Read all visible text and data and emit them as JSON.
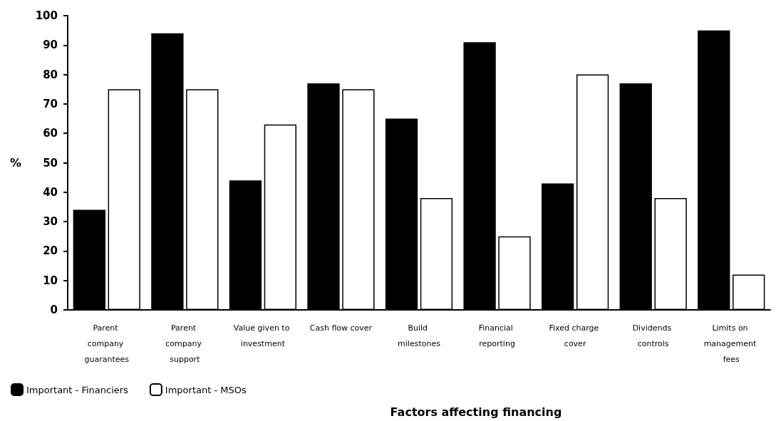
{
  "chart_data": {
    "type": "bar",
    "xlabel": "Factors affecting financing",
    "ylabel": "%",
    "categories": [
      "Parent company guarantees",
      "Parent company support",
      "Value given to investment",
      "Cash flow cover",
      "Build milestones",
      "Financial reporting",
      "Fixed charge cover",
      "Dividends controls",
      "Limits on management fees"
    ],
    "series": [
      {
        "name": "Important - Financiers",
        "color": "#000000",
        "values": [
          34,
          94,
          44,
          77,
          65,
          91,
          43,
          77,
          95
        ]
      },
      {
        "name": "Important - MSOs",
        "color": "#ffffff",
        "values": [
          75,
          75,
          63,
          75,
          38,
          25,
          80,
          38,
          12
        ]
      }
    ],
    "ylim": [
      0,
      100
    ],
    "yticks": [
      0,
      10,
      20,
      30,
      40,
      50,
      60,
      70,
      80,
      90,
      100
    ],
    "grid": false,
    "legend": "bottom left"
  }
}
